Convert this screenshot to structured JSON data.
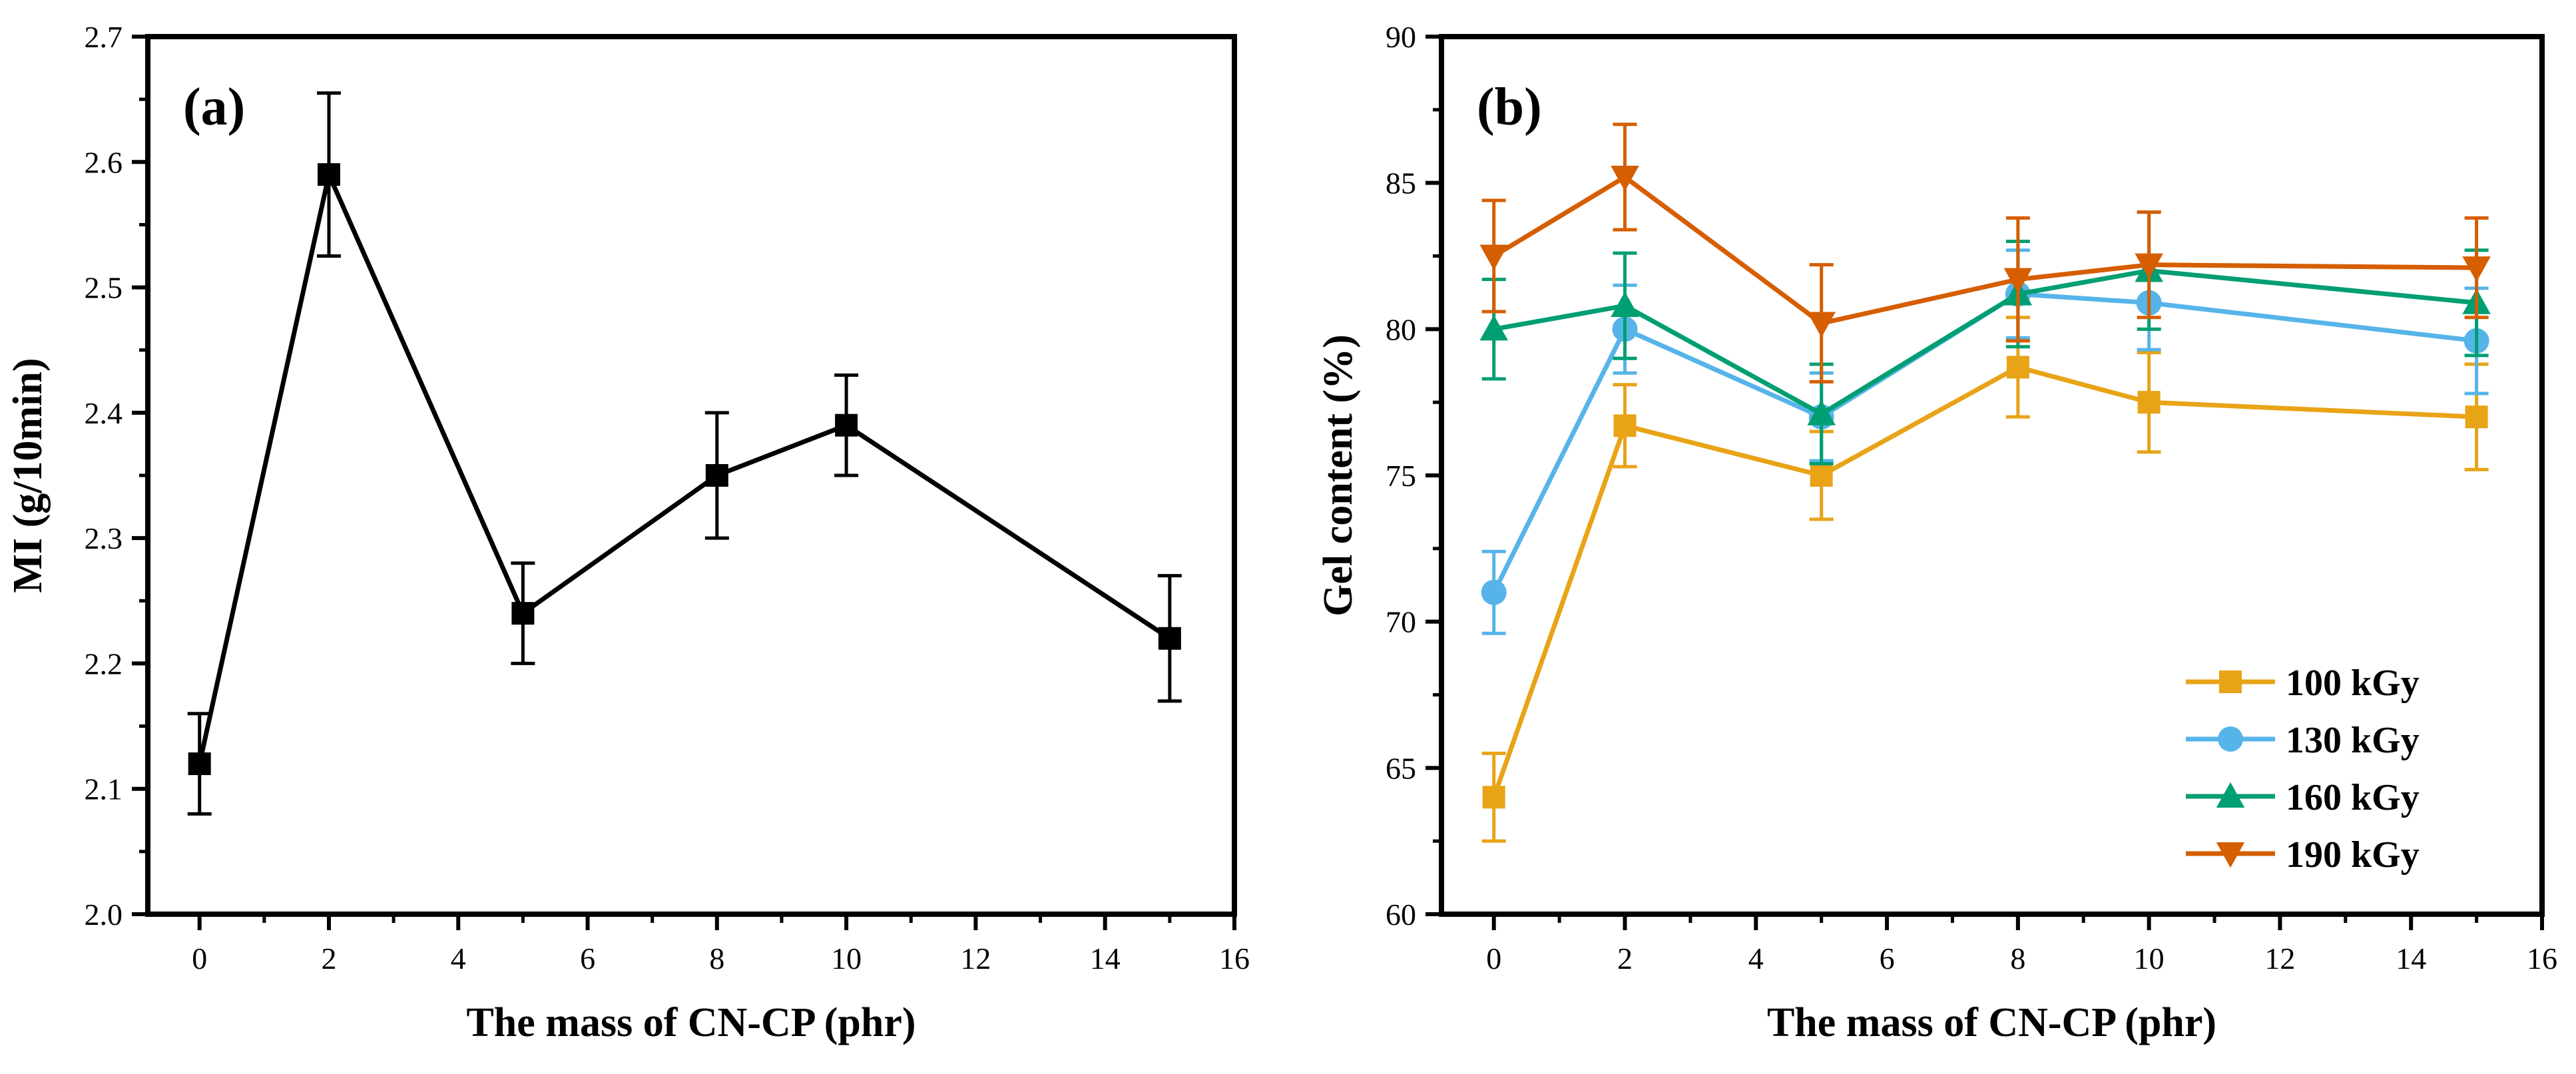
{
  "chart_data": [
    {
      "type": "line",
      "panel_label": "(a)",
      "title": "",
      "xlabel": "The mass of CN-CP (phr)",
      "ylabel": "MI (g/10min)",
      "xlim": [
        -0.8,
        16
      ],
      "ylim": [
        2.0,
        2.7
      ],
      "xticks": [
        0,
        2,
        4,
        6,
        8,
        10,
        12,
        14,
        16
      ],
      "yticks": [
        2.0,
        2.1,
        2.2,
        2.3,
        2.4,
        2.5,
        2.6,
        2.7
      ],
      "xtick_labels": [
        "0",
        "2",
        "4",
        "6",
        "8",
        "10",
        "12",
        "14",
        "16"
      ],
      "ytick_labels": [
        "2.0",
        "2.1",
        "2.2",
        "2.3",
        "2.4",
        "2.5",
        "2.6",
        "2.7"
      ],
      "series": [
        {
          "name": "MI",
          "color": "#000000",
          "marker": "square",
          "x": [
            0,
            2,
            5,
            8,
            10,
            15
          ],
          "values": [
            2.12,
            2.59,
            2.24,
            2.35,
            2.39,
            2.22
          ],
          "errors": [
            0.04,
            0.065,
            0.04,
            0.05,
            0.04,
            0.05
          ]
        }
      ]
    },
    {
      "type": "line",
      "panel_label": "(b)",
      "title": "",
      "xlabel": "The mass of CN-CP (phr)",
      "ylabel": "Gel content (%)",
      "xlim": [
        -0.8,
        16
      ],
      "ylim": [
        60,
        90
      ],
      "xticks": [
        0,
        2,
        4,
        6,
        8,
        10,
        12,
        14,
        16
      ],
      "yticks": [
        60,
        65,
        70,
        75,
        80,
        85,
        90
      ],
      "xtick_labels": [
        "0",
        "2",
        "4",
        "6",
        "8",
        "10",
        "12",
        "14",
        "16"
      ],
      "ytick_labels": [
        "60",
        "65",
        "70",
        "75",
        "80",
        "85",
        "90"
      ],
      "legend_position": "bottom-right",
      "series": [
        {
          "name": "100 kGy",
          "color": "#E8A317",
          "marker": "square",
          "x": [
            0,
            2,
            5,
            8,
            10,
            15
          ],
          "values": [
            64.0,
            76.7,
            75.0,
            78.7,
            77.5,
            77.0
          ],
          "errors": [
            1.5,
            1.4,
            1.5,
            1.7,
            1.7,
            1.8
          ]
        },
        {
          "name": "130 kGy",
          "color": "#56B4E9",
          "marker": "circle",
          "x": [
            0,
            2,
            5,
            8,
            10,
            15
          ],
          "values": [
            71.0,
            80.0,
            77.0,
            81.2,
            80.9,
            79.6
          ],
          "errors": [
            1.4,
            1.5,
            1.5,
            1.5,
            1.6,
            1.8
          ]
        },
        {
          "name": "160 kGy",
          "color": "#009E73",
          "marker": "triangle-up",
          "x": [
            0,
            2,
            5,
            8,
            10,
            15
          ],
          "values": [
            80.0,
            80.8,
            77.1,
            81.2,
            82.0,
            80.9
          ],
          "errors": [
            1.7,
            1.8,
            1.7,
            1.8,
            2.0,
            1.8
          ]
        },
        {
          "name": "190 kGy",
          "color": "#D55E00",
          "marker": "triangle-down",
          "x": [
            0,
            2,
            5,
            8,
            10,
            15
          ],
          "values": [
            82.5,
            85.2,
            80.2,
            81.7,
            82.2,
            82.1
          ],
          "errors": [
            1.9,
            1.8,
            2.0,
            2.1,
            1.8,
            1.7
          ]
        }
      ]
    }
  ]
}
